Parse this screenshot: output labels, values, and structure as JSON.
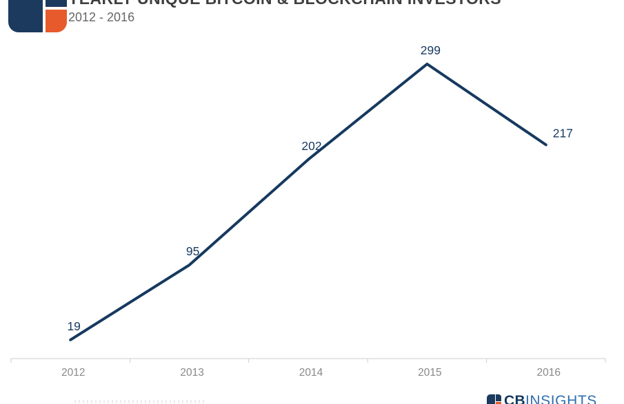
{
  "header": {
    "title": "YEARLY UNIQUE BITCOIN & BLOCKCHAIN INVESTORS",
    "subtitle": "2012 - 2016"
  },
  "footer": {
    "logo_cb": "CB",
    "logo_insights": "INSIGHTS"
  },
  "icons": {
    "top_left_logo": "cb-insights-mark",
    "footer_logo": "cb-insights-mark-small"
  },
  "colors": {
    "line": "#16395f",
    "data_label": "#16395f",
    "axis_line": "#cccccc",
    "axis_tick": "#cccccc",
    "axis_label": "#888888",
    "title_text": "#3f3f3f",
    "subtitle_text": "#666666",
    "logo_navy": "#1b3a5e",
    "logo_orange": "#e75a2b",
    "footer_insights_blue": "#2f6fae"
  },
  "chart_data": {
    "type": "line",
    "categories": [
      "2012",
      "2013",
      "2014",
      "2015",
      "2016"
    ],
    "values": [
      19,
      95,
      202,
      299,
      217
    ],
    "title": "YEARLY UNIQUE BITCOIN & BLOCKCHAIN INVESTORS",
    "subtitle": "2012 - 2016",
    "xlabel": "",
    "ylabel": "",
    "ylim": [
      0,
      310
    ],
    "grid": false,
    "legend": "none",
    "data_labels_visible": true,
    "y_axis_visible": false
  }
}
